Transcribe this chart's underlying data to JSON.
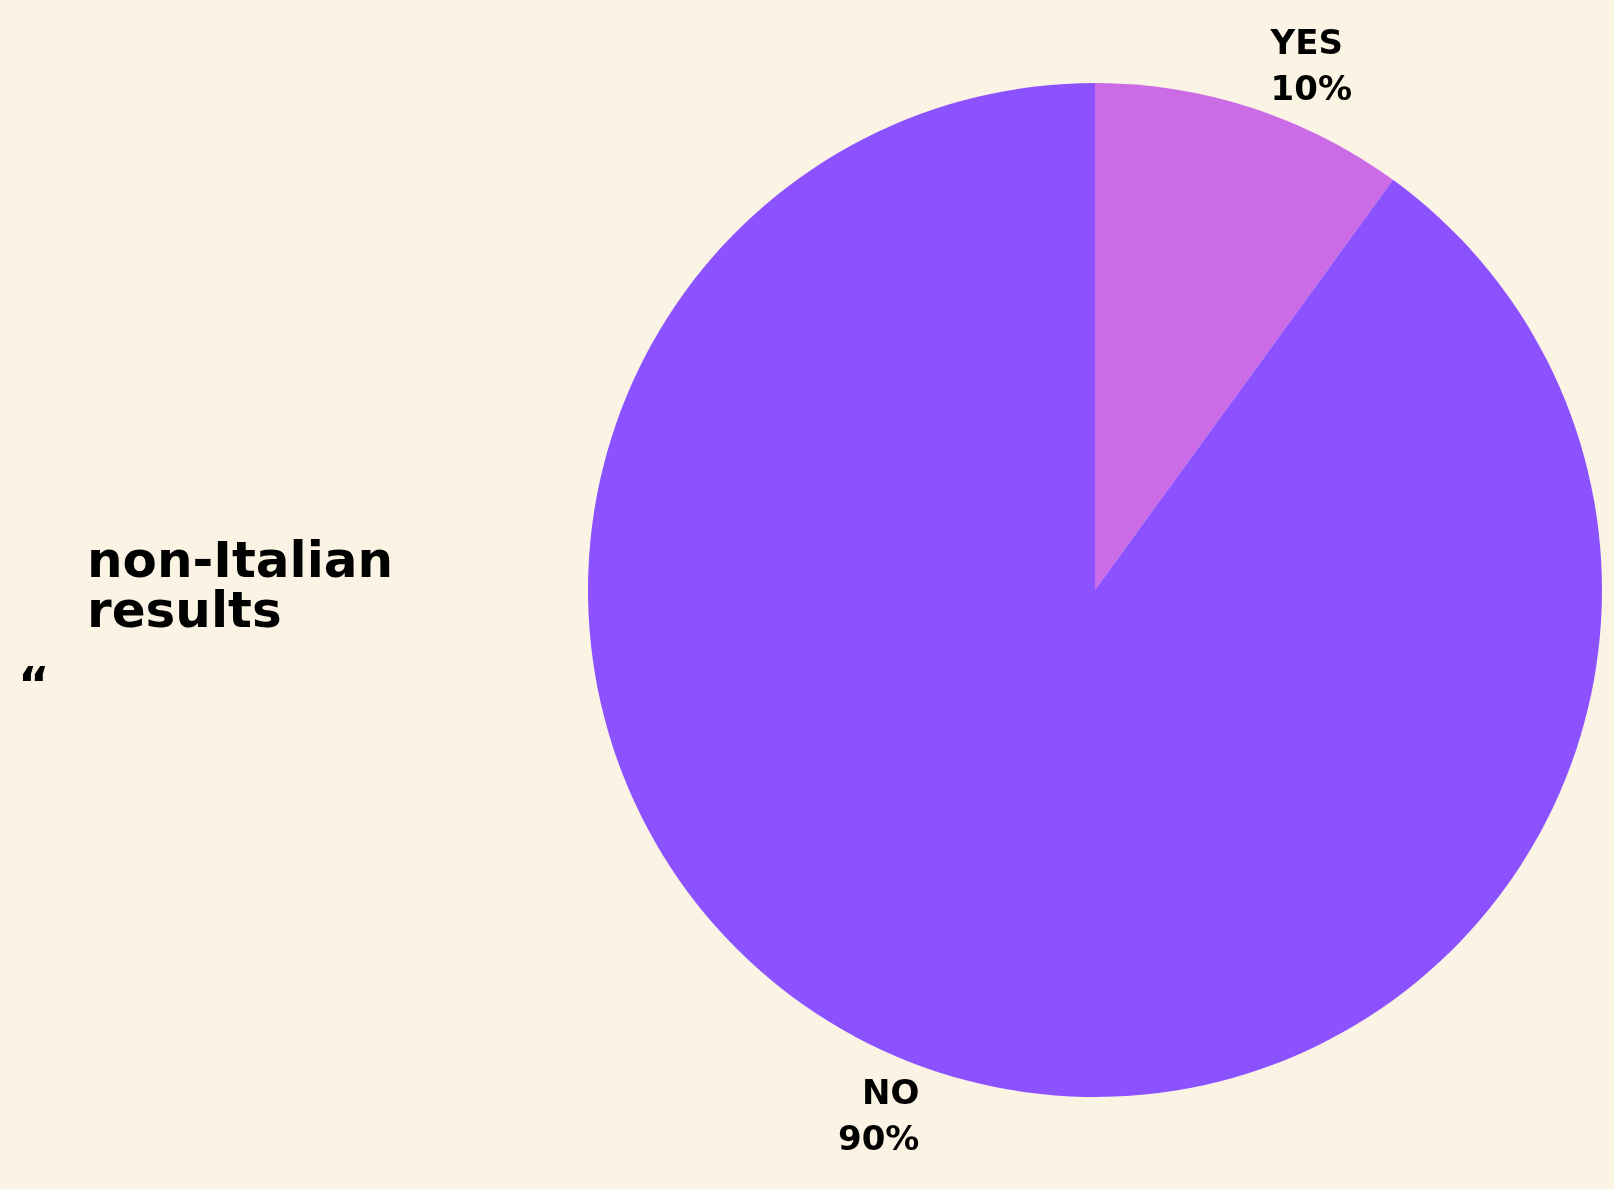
{
  "chart_data": {
    "type": "pie",
    "title": "non-Italian\nresults",
    "annotations": [
      "“"
    ],
    "categories": [
      "YES",
      "NO"
    ],
    "values": [
      10,
      90
    ],
    "colors": [
      "#cb6ce6",
      "#8c52ff"
    ],
    "value_labels": [
      "10%",
      "90%"
    ],
    "legend": false
  }
}
